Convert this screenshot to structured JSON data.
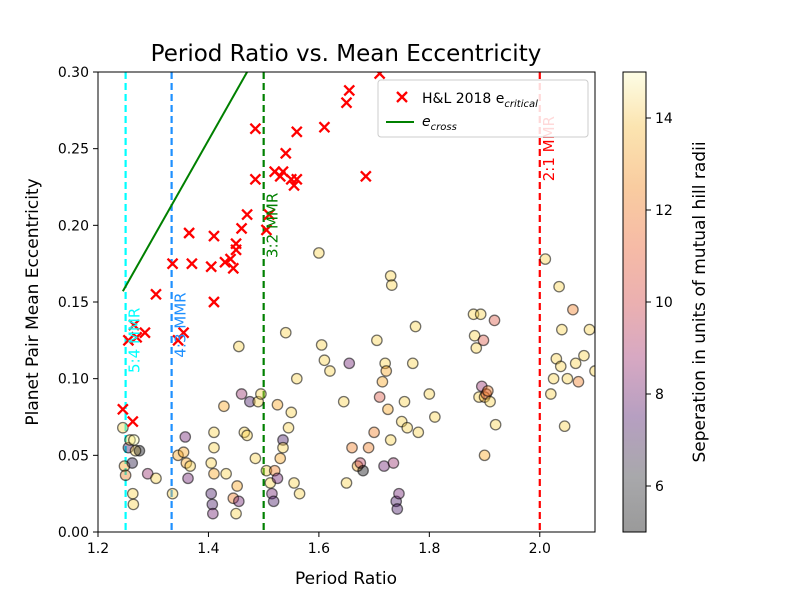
{
  "chart_data": {
    "type": "scatter",
    "title": "Period Ratio vs. Mean Eccentricity",
    "xlabel": "Period Ratio",
    "ylabel": "Planet Pair Mean Eccentricity",
    "xlim": [
      1.2,
      2.1
    ],
    "ylim": [
      0.0,
      0.3
    ],
    "xticks": [
      1.2,
      1.4,
      1.6,
      1.8,
      2.0
    ],
    "xtick_labels": [
      "1.2",
      "1.4",
      "1.6",
      "1.8",
      "2.0"
    ],
    "yticks": [
      0.0,
      0.05,
      0.1,
      0.15,
      0.2,
      0.25,
      0.3
    ],
    "ytick_labels": [
      "0.00",
      "0.05",
      "0.10",
      "0.15",
      "0.20",
      "0.25",
      "0.30"
    ],
    "colorbar": {
      "label": "Seperation in units of mutual hill radii",
      "range": [
        5,
        15
      ],
      "ticks": [
        6,
        8,
        10,
        12,
        14
      ],
      "tick_labels": [
        "6",
        "8",
        "10",
        "12",
        "14"
      ],
      "colormap": "inferno (alpha 0.4)"
    },
    "legend": {
      "position": "top-right",
      "entries": [
        {
          "label_main": "H&L 2018 e",
          "label_sub": "critical",
          "marker": "x",
          "color": "#ff0000"
        },
        {
          "label_main": "e",
          "label_sub": "cross",
          "marker": "line",
          "color": "#008000"
        }
      ]
    },
    "resonances": [
      {
        "x": 1.25,
        "label": "5:4 MMR",
        "color": "#00ffff",
        "label_y": 0.125
      },
      {
        "x": 1.3333,
        "label": "4:3 MMR",
        "color": "#1e90ff",
        "label_y": 0.135
      },
      {
        "x": 1.5,
        "label": "3:2 MMR",
        "color": "#008000",
        "label_y": 0.2
      },
      {
        "x": 2.0,
        "label": "2:1 MMR",
        "color": "#ff0000",
        "label_y": 0.25
      }
    ],
    "e_cross_line": [
      [
        1.245,
        0.157
      ],
      [
        1.47,
        0.3
      ]
    ],
    "hl2018_ecritical": [
      [
        1.245,
        0.08
      ],
      [
        1.255,
        0.125
      ],
      [
        1.263,
        0.072
      ],
      [
        1.265,
        0.135
      ],
      [
        1.27,
        0.127
      ],
      [
        1.285,
        0.13
      ],
      [
        1.305,
        0.155
      ],
      [
        1.335,
        0.175
      ],
      [
        1.345,
        0.125
      ],
      [
        1.355,
        0.13
      ],
      [
        1.365,
        0.195
      ],
      [
        1.37,
        0.175
      ],
      [
        1.405,
        0.173
      ],
      [
        1.41,
        0.15
      ],
      [
        1.41,
        0.193
      ],
      [
        1.43,
        0.176
      ],
      [
        1.44,
        0.178
      ],
      [
        1.445,
        0.172
      ],
      [
        1.45,
        0.184
      ],
      [
        1.45,
        0.188
      ],
      [
        1.46,
        0.198
      ],
      [
        1.47,
        0.207
      ],
      [
        1.485,
        0.23
      ],
      [
        1.485,
        0.263
      ],
      [
        1.505,
        0.197
      ],
      [
        1.51,
        0.207
      ],
      [
        1.52,
        0.235
      ],
      [
        1.53,
        0.232
      ],
      [
        1.535,
        0.235
      ],
      [
        1.54,
        0.247
      ],
      [
        1.55,
        0.23
      ],
      [
        1.555,
        0.226
      ],
      [
        1.56,
        0.261
      ],
      [
        1.56,
        0.23
      ],
      [
        1.61,
        0.264
      ],
      [
        1.65,
        0.28
      ],
      [
        1.655,
        0.288
      ],
      [
        1.685,
        0.232
      ],
      [
        1.71,
        0.299
      ]
    ],
    "systems": [
      [
        1.245,
        0.068,
        14
      ],
      [
        1.248,
        0.043,
        13
      ],
      [
        1.25,
        0.037,
        12
      ],
      [
        1.255,
        0.055,
        7
      ],
      [
        1.258,
        0.06,
        14
      ],
      [
        1.262,
        0.045,
        6
      ],
      [
        1.263,
        0.025,
        14
      ],
      [
        1.264,
        0.018,
        14
      ],
      [
        1.265,
        0.06,
        15
      ],
      [
        1.268,
        0.053,
        14
      ],
      [
        1.275,
        0.053,
        5
      ],
      [
        1.29,
        0.038,
        9
      ],
      [
        1.305,
        0.035,
        14
      ],
      [
        1.335,
        0.025,
        14
      ],
      [
        1.345,
        0.05,
        13
      ],
      [
        1.355,
        0.052,
        13
      ],
      [
        1.358,
        0.062,
        8
      ],
      [
        1.36,
        0.045,
        13
      ],
      [
        1.363,
        0.035,
        8
      ],
      [
        1.367,
        0.043,
        14
      ],
      [
        1.405,
        0.045,
        14
      ],
      [
        1.405,
        0.025,
        7
      ],
      [
        1.407,
        0.018,
        7
      ],
      [
        1.408,
        0.012,
        8
      ],
      [
        1.41,
        0.065,
        14
      ],
      [
        1.41,
        0.055,
        14
      ],
      [
        1.41,
        0.038,
        13
      ],
      [
        1.428,
        0.082,
        13
      ],
      [
        1.432,
        0.038,
        14
      ],
      [
        1.445,
        0.022,
        12
      ],
      [
        1.45,
        0.012,
        14
      ],
      [
        1.452,
        0.03,
        13
      ],
      [
        1.455,
        0.02,
        8
      ],
      [
        1.455,
        0.121,
        14
      ],
      [
        1.46,
        0.09,
        9
      ],
      [
        1.465,
        0.065,
        14
      ],
      [
        1.47,
        0.063,
        14
      ],
      [
        1.475,
        0.085,
        7
      ],
      [
        1.485,
        0.048,
        14
      ],
      [
        1.49,
        0.085,
        14
      ],
      [
        1.495,
        0.09,
        14
      ],
      [
        1.505,
        0.04,
        14
      ],
      [
        1.512,
        0.032,
        14
      ],
      [
        1.515,
        0.025,
        8
      ],
      [
        1.518,
        0.02,
        7
      ],
      [
        1.52,
        0.04,
        12
      ],
      [
        1.525,
        0.083,
        13
      ],
      [
        1.525,
        0.035,
        8
      ],
      [
        1.53,
        0.048,
        13
      ],
      [
        1.535,
        0.06,
        7
      ],
      [
        1.535,
        0.055,
        14
      ],
      [
        1.54,
        0.13,
        14
      ],
      [
        1.545,
        0.068,
        14
      ],
      [
        1.55,
        0.078,
        14
      ],
      [
        1.555,
        0.032,
        14
      ],
      [
        1.56,
        0.1,
        14
      ],
      [
        1.565,
        0.025,
        14
      ],
      [
        1.6,
        0.182,
        14
      ],
      [
        1.605,
        0.122,
        14
      ],
      [
        1.61,
        0.112,
        14
      ],
      [
        1.62,
        0.105,
        14
      ],
      [
        1.645,
        0.085,
        14
      ],
      [
        1.65,
        0.032,
        14
      ],
      [
        1.655,
        0.11,
        8
      ],
      [
        1.66,
        0.055,
        12
      ],
      [
        1.67,
        0.043,
        13
      ],
      [
        1.675,
        0.045,
        10
      ],
      [
        1.68,
        0.04,
        5
      ],
      [
        1.69,
        0.055,
        12
      ],
      [
        1.7,
        0.065,
        12
      ],
      [
        1.705,
        0.125,
        14
      ],
      [
        1.71,
        0.088,
        11
      ],
      [
        1.715,
        0.098,
        13
      ],
      [
        1.718,
        0.043,
        8
      ],
      [
        1.72,
        0.11,
        14
      ],
      [
        1.722,
        0.105,
        13
      ],
      [
        1.725,
        0.08,
        13
      ],
      [
        1.73,
        0.06,
        14
      ],
      [
        1.73,
        0.167,
        14
      ],
      [
        1.732,
        0.161,
        14
      ],
      [
        1.735,
        0.045,
        9
      ],
      [
        1.74,
        0.02,
        7
      ],
      [
        1.742,
        0.015,
        7
      ],
      [
        1.745,
        0.025,
        8
      ],
      [
        1.75,
        0.072,
        14
      ],
      [
        1.755,
        0.085,
        14
      ],
      [
        1.76,
        0.068,
        14
      ],
      [
        1.77,
        0.11,
        14
      ],
      [
        1.775,
        0.134,
        14
      ],
      [
        1.78,
        0.065,
        14
      ],
      [
        1.8,
        0.09,
        14
      ],
      [
        1.81,
        0.075,
        14
      ],
      [
        1.88,
        0.142,
        14
      ],
      [
        1.882,
        0.128,
        14
      ],
      [
        1.885,
        0.12,
        14
      ],
      [
        1.89,
        0.088,
        14
      ],
      [
        1.893,
        0.142,
        14
      ],
      [
        1.895,
        0.095,
        9
      ],
      [
        1.898,
        0.125,
        11
      ],
      [
        1.9,
        0.088,
        13
      ],
      [
        1.9,
        0.05,
        13
      ],
      [
        1.903,
        0.09,
        11
      ],
      [
        1.906,
        0.092,
        12
      ],
      [
        1.91,
        0.085,
        14
      ],
      [
        1.918,
        0.138,
        11
      ],
      [
        1.92,
        0.07,
        14
      ],
      [
        2.01,
        0.178,
        14
      ],
      [
        2.02,
        0.09,
        14
      ],
      [
        2.025,
        0.1,
        14
      ],
      [
        2.03,
        0.113,
        14
      ],
      [
        2.035,
        0.16,
        14
      ],
      [
        2.038,
        0.108,
        14
      ],
      [
        2.04,
        0.132,
        14
      ],
      [
        2.045,
        0.069,
        14
      ],
      [
        2.05,
        0.1,
        14
      ],
      [
        2.06,
        0.145,
        12
      ],
      [
        2.065,
        0.11,
        14
      ],
      [
        2.07,
        0.098,
        12
      ],
      [
        2.08,
        0.115,
        14
      ],
      [
        2.09,
        0.132,
        14
      ],
      [
        2.1,
        0.105,
        14
      ]
    ]
  }
}
